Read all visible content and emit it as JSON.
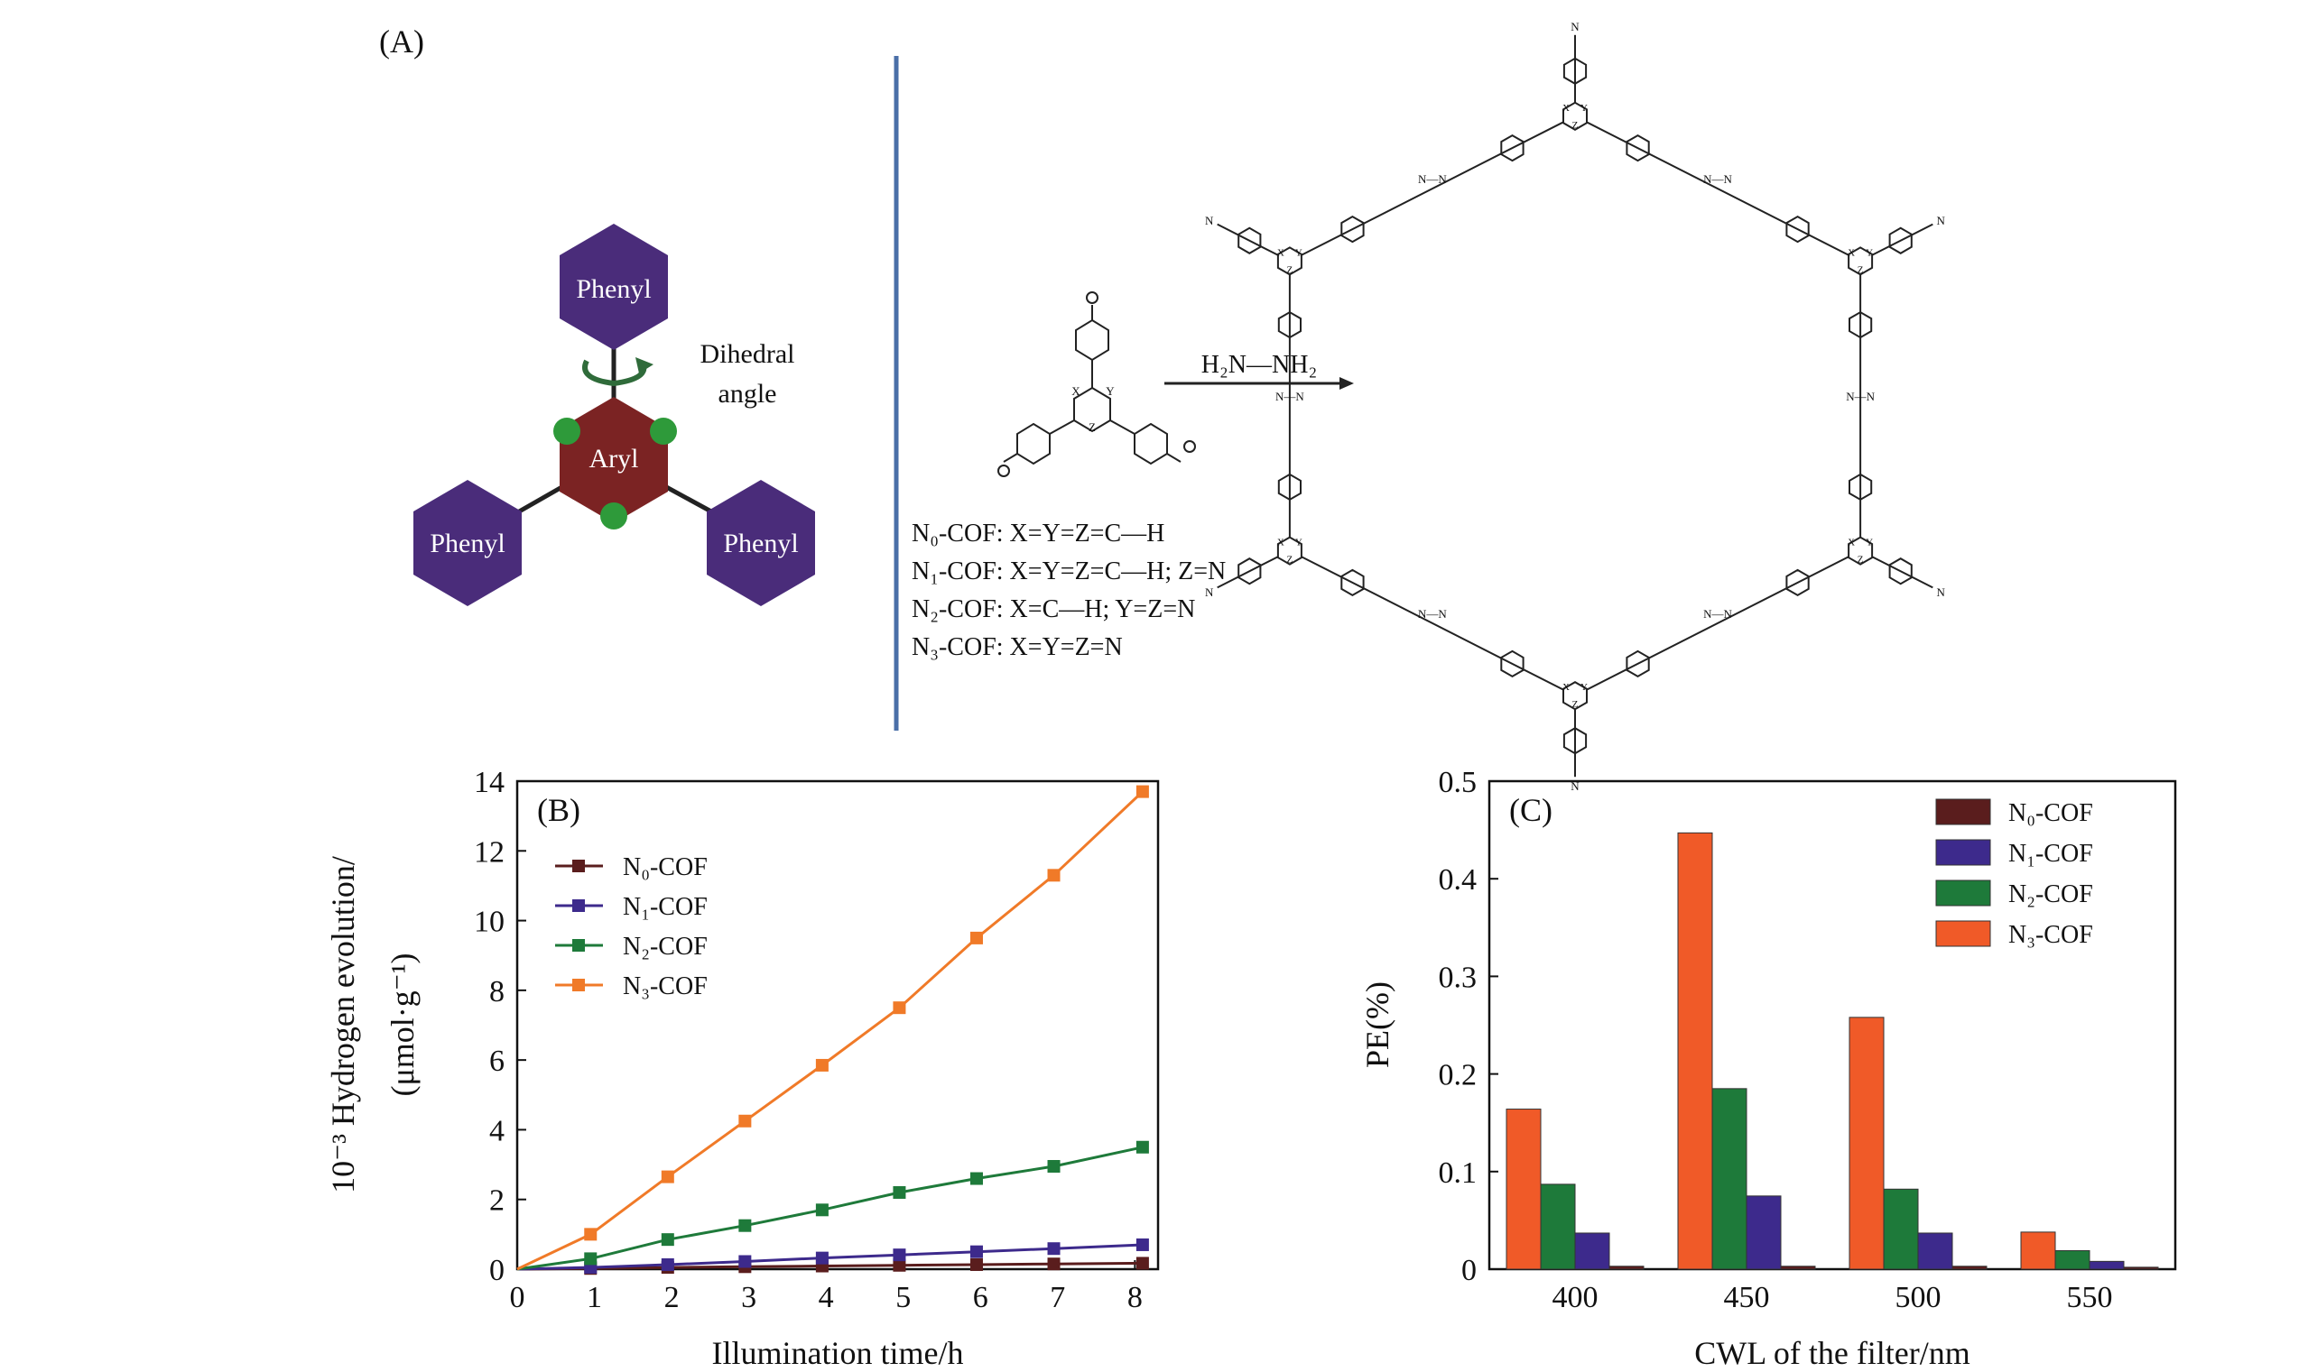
{
  "panel_a": {
    "label": "(A)",
    "schematic": {
      "top_hex": "Phenyl",
      "left_hex": "Phenyl",
      "right_hex": "Phenyl",
      "center_hex": "Aryl",
      "annotation_line1": "Dihedral",
      "annotation_line2": "angle"
    },
    "reagent": "H₂N—NH₂",
    "variants": [
      "N₀-COF: X=Y=Z=C—H",
      "N₁-COF: X=Y=Z=C—H; Z=N",
      "N₂-COF: X=C—H; Y=Z=N",
      "N₃-COF: X=Y=Z=N"
    ],
    "atoms": {
      "x": "X",
      "y": "Y",
      "z": "Z",
      "n": "N"
    },
    "colors": {
      "phenyl": "#4a2c7a",
      "aryl": "#7b2323",
      "dot": "#2e9a3a",
      "arrow": "#2f6b3a",
      "divider": "#4a6fa8"
    }
  },
  "chart_data": [
    {
      "type": "line",
      "panel_label": "(B)",
      "xlabel": "Illumination time/h",
      "ylabel_line1": "10⁻³ Hydrogen evolution/",
      "ylabel_line2": "(μmol·g⁻¹)",
      "xlim": [
        0,
        8.3
      ],
      "ylim": [
        0,
        14
      ],
      "xticks": [
        "0",
        "1",
        "2",
        "3",
        "4",
        "5",
        "6",
        "7",
        "8"
      ],
      "yticks": [
        "0",
        "2",
        "4",
        "6",
        "8",
        "10",
        "12",
        "14"
      ],
      "legend_position": "top-left",
      "x": [
        0,
        0.95,
        1.95,
        2.95,
        3.95,
        4.95,
        5.95,
        6.95,
        8.1
      ],
      "series": [
        {
          "name": "N₀-COF",
          "color": "#5a1d1d",
          "values": [
            0,
            0.02,
            0.05,
            0.07,
            0.09,
            0.11,
            0.13,
            0.15,
            0.17
          ]
        },
        {
          "name": "N₁-COF",
          "color": "#3d2a8c",
          "values": [
            0,
            0.05,
            0.13,
            0.22,
            0.32,
            0.41,
            0.5,
            0.59,
            0.7
          ]
        },
        {
          "name": "N₂-COF",
          "color": "#1e7a3a",
          "values": [
            0,
            0.3,
            0.85,
            1.25,
            1.7,
            2.2,
            2.6,
            2.95,
            3.5
          ]
        },
        {
          "name": "N₃-COF",
          "color": "#f07a28",
          "values": [
            0,
            1.0,
            2.65,
            4.25,
            5.85,
            7.5,
            9.5,
            11.3,
            13.7
          ]
        }
      ]
    },
    {
      "type": "bar",
      "panel_label": "(C)",
      "xlabel": "CWL of the filter/nm",
      "ylabel": "PE(%)",
      "ylim": [
        0,
        0.5
      ],
      "yticks": [
        "0",
        "0.1",
        "0.2",
        "0.3",
        "0.4",
        "0.5"
      ],
      "categories": [
        "400",
        "450",
        "500",
        "550"
      ],
      "legend_position": "top-right",
      "series": [
        {
          "name": "N₀-COF",
          "color": "#5a1d1d",
          "values": [
            0.003,
            0.003,
            0.003,
            0.002
          ]
        },
        {
          "name": "N₁-COF",
          "color": "#3d2a8c",
          "values": [
            0.037,
            0.075,
            0.037,
            0.008
          ]
        },
        {
          "name": "N₂-COF",
          "color": "#1e7a3a",
          "values": [
            0.087,
            0.185,
            0.082,
            0.019
          ]
        },
        {
          "name": "N₃-COF",
          "color": "#f05a28",
          "values": [
            0.164,
            0.447,
            0.258,
            0.038
          ]
        }
      ]
    }
  ]
}
